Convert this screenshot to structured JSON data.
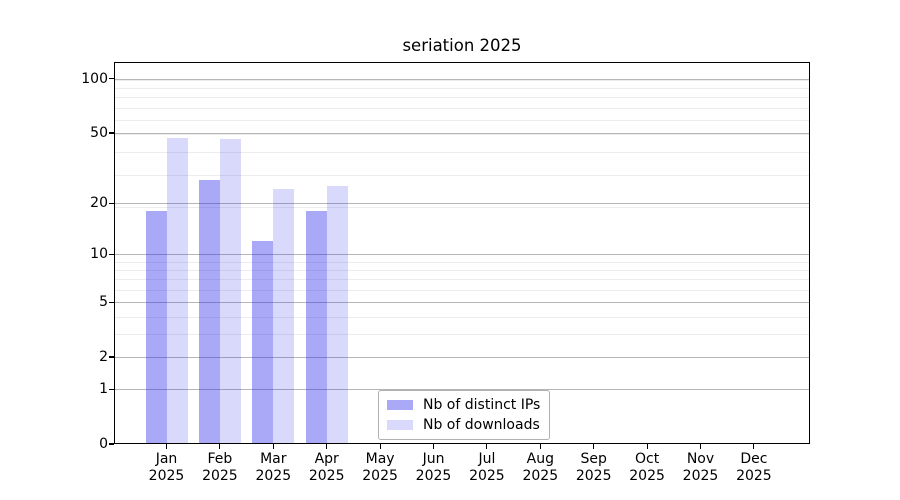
{
  "chart_data": {
    "type": "bar",
    "title": "seriation 2025",
    "categories": [
      "Jan",
      "Feb",
      "Mar",
      "Apr",
      "May",
      "Jun",
      "Jul",
      "Aug",
      "Sep",
      "Oct",
      "Nov",
      "Dec"
    ],
    "x_year": "2025",
    "series": [
      {
        "name": "Nb of distinct IPs",
        "color": "rgba(30,30,235,0.38)",
        "values": [
          18,
          27,
          12,
          18,
          0,
          0,
          0,
          0,
          0,
          0,
          0,
          0
        ]
      },
      {
        "name": "Nb of downloads",
        "color": "rgba(30,30,235,0.17)",
        "values": [
          47,
          46,
          24,
          25,
          0,
          0,
          0,
          0,
          0,
          0,
          0,
          0
        ]
      }
    ],
    "y_axis": {
      "scale": "log10(value+1)",
      "ticks": [
        0,
        1,
        2,
        5,
        10,
        20,
        50,
        100
      ],
      "minor_ticks": [
        3,
        4,
        6,
        7,
        8,
        9,
        19,
        29,
        39,
        49,
        59,
        69,
        79,
        89,
        99
      ],
      "max": 124
    },
    "grid": {
      "major_color": "#b6b6b6",
      "minor_color": "#ececec",
      "grid_on": true
    },
    "legend": {
      "position": "bottom-center",
      "border_color": "#b0b0b0"
    },
    "axis_color": "#000000",
    "background_color": "#ffffff"
  }
}
